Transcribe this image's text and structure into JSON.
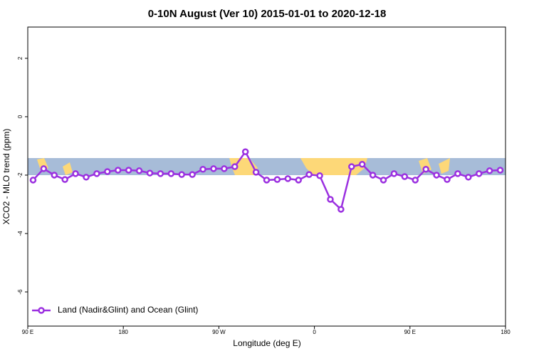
{
  "chart_data": {
    "type": "line",
    "title": "0-10N August (Ver 10)   2015-01-01 to 2020-12-18",
    "x_label": "Longitude (deg E)",
    "y_label": "XCO2 - MLO trend (ppm)",
    "xlim": [
      90,
      540
    ],
    "xticks": [
      {
        "value": 90,
        "label": "90 E"
      },
      180,
      {
        "value": 270,
        "label": "90 W"
      },
      {
        "value": 360,
        "label": "0"
      },
      {
        "value": 450,
        "label": "90 E"
      },
      {
        "value": 540,
        "label": "180"
      }
    ],
    "ylim": [
      -7.17,
      3.07
    ],
    "yticks": [
      2,
      0,
      -2,
      -4,
      -6
    ],
    "legend": "bottom left",
    "x": [
      95,
      105,
      115,
      125,
      135,
      145,
      155,
      165,
      175,
      185,
      195,
      205,
      215,
      225,
      235,
      245,
      255,
      265,
      275,
      285,
      295,
      305,
      315,
      325,
      335,
      345,
      355,
      365,
      375,
      385,
      395,
      405,
      415,
      425,
      435,
      445,
      455,
      465,
      475,
      485,
      495,
      505,
      515,
      525,
      535
    ],
    "series": [
      {
        "name": "Land (Nadir&Glint) and Ocean (Glint)",
        "color": "#9b30e0",
        "values": [
          -2.17,
          -1.78,
          -2.0,
          -2.15,
          -1.95,
          -2.07,
          -1.95,
          -1.88,
          -1.83,
          -1.83,
          -1.85,
          -1.93,
          -1.95,
          -1.95,
          -1.98,
          -1.98,
          -1.8,
          -1.78,
          -1.78,
          -1.71,
          -1.2,
          -1.9,
          -2.17,
          -2.15,
          -2.12,
          -2.17,
          -1.98,
          -2.02,
          -2.83,
          -3.17,
          -1.71,
          -1.63,
          -2.0,
          -2.17,
          -1.95,
          -2.05,
          -2.17,
          -1.8,
          -2.0,
          -2.15,
          -1.95,
          -2.07,
          -1.95,
          -1.85,
          -1.83
        ]
      }
    ]
  }
}
